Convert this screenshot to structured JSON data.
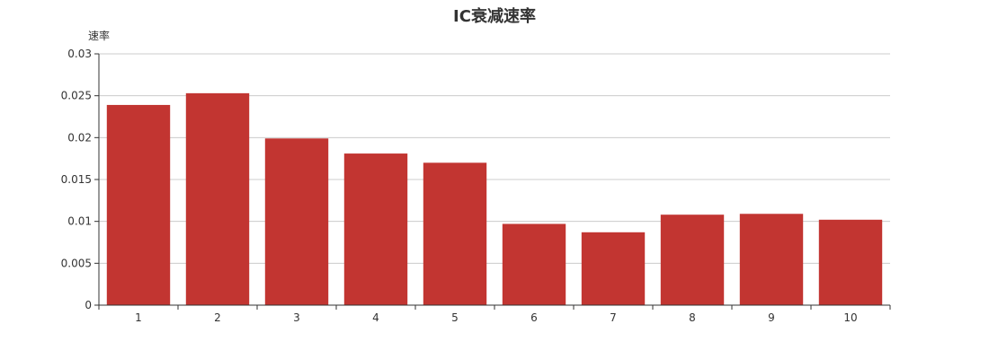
{
  "chart_data": {
    "type": "bar",
    "title": "IC衰减速率",
    "xlabel": "",
    "ylabel": "速率",
    "categories": [
      "1",
      "2",
      "3",
      "4",
      "5",
      "6",
      "7",
      "8",
      "9",
      "10"
    ],
    "values": [
      0.0239,
      0.0253,
      0.0199,
      0.0181,
      0.017,
      0.0097,
      0.0087,
      0.0108,
      0.0109,
      0.0102
    ],
    "ylim": [
      0,
      0.03
    ],
    "yticks": [
      0,
      0.005,
      0.01,
      0.015,
      0.02,
      0.025,
      0.03
    ],
    "ytick_labels": [
      "0",
      "0.005",
      "0.01",
      "0.015",
      "0.02",
      "0.025",
      "0.03"
    ],
    "grid": true,
    "legend": "none",
    "colors": {
      "bar": "#c23531",
      "grid": "#cccccc",
      "axis": "#333333",
      "text": "#333333"
    }
  }
}
